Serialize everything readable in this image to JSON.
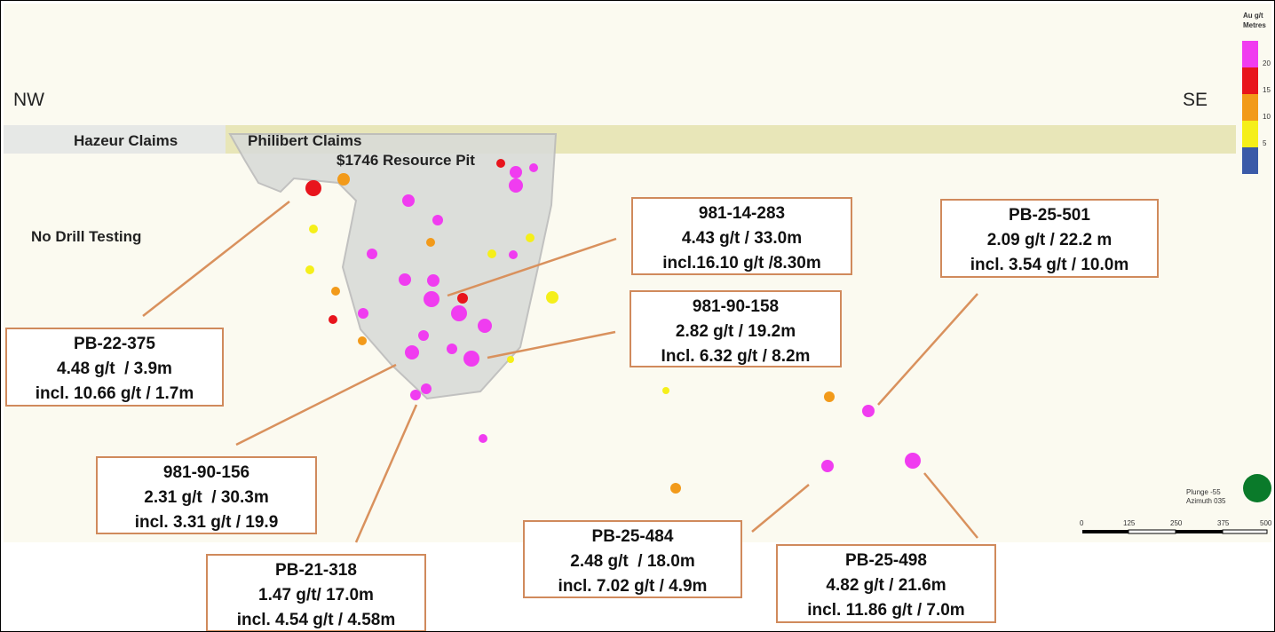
{
  "directions": {
    "left": "NW",
    "right": "SE"
  },
  "regions": [
    "Hazeur Claims",
    "Philibert Claims",
    "$1746 Resource Pit",
    "No Drill Testing"
  ],
  "callouts": [
    {
      "hole": "PB-22-375",
      "lines": [
        "4.48 g/t  / 3.9m",
        "incl. 10.66 g/t / 1.7m"
      ]
    },
    {
      "hole": "981-14-283",
      "lines": [
        "4.43 g/t / 33.0m",
        "incl.16.10 g/t /8.30m"
      ]
    },
    {
      "hole": "PB-25-501",
      "lines": [
        "2.09 g/t / 22.2 m",
        "incl. 3.54 g/t / 10.0m"
      ]
    },
    {
      "hole": "981-90-158",
      "lines": [
        "2.82 g/t / 19.2m",
        "Incl. 6.32 g/t / 8.2m"
      ]
    },
    {
      "hole": "981-90-156",
      "lines": [
        "2.31 g/t  / 30.3m",
        "incl. 3.31 g/t / 19.9"
      ]
    },
    {
      "hole": "PB-21-318",
      "lines": [
        "1.47 g/t/ 17.0m",
        "incl. 4.54 g/t / 4.58m"
      ]
    },
    {
      "hole": "PB-25-484",
      "lines": [
        "2.48 g/t  / 18.0m",
        "incl. 7.02 g/t / 4.9m"
      ]
    },
    {
      "hole": "PB-25-498",
      "lines": [
        "4.82 g/t / 21.6m",
        "incl. 11.86 g/t / 7.0m"
      ]
    }
  ],
  "legend": {
    "title": "Au g/t",
    "subtitle": "Metres",
    "ticks": [
      "20",
      "15",
      "10",
      "5"
    ]
  },
  "scale_bar": {
    "ticks": [
      "0",
      "125",
      "250",
      "375",
      "500"
    ]
  },
  "view": [
    "Plunge -55",
    "Azimuth 035"
  ]
}
